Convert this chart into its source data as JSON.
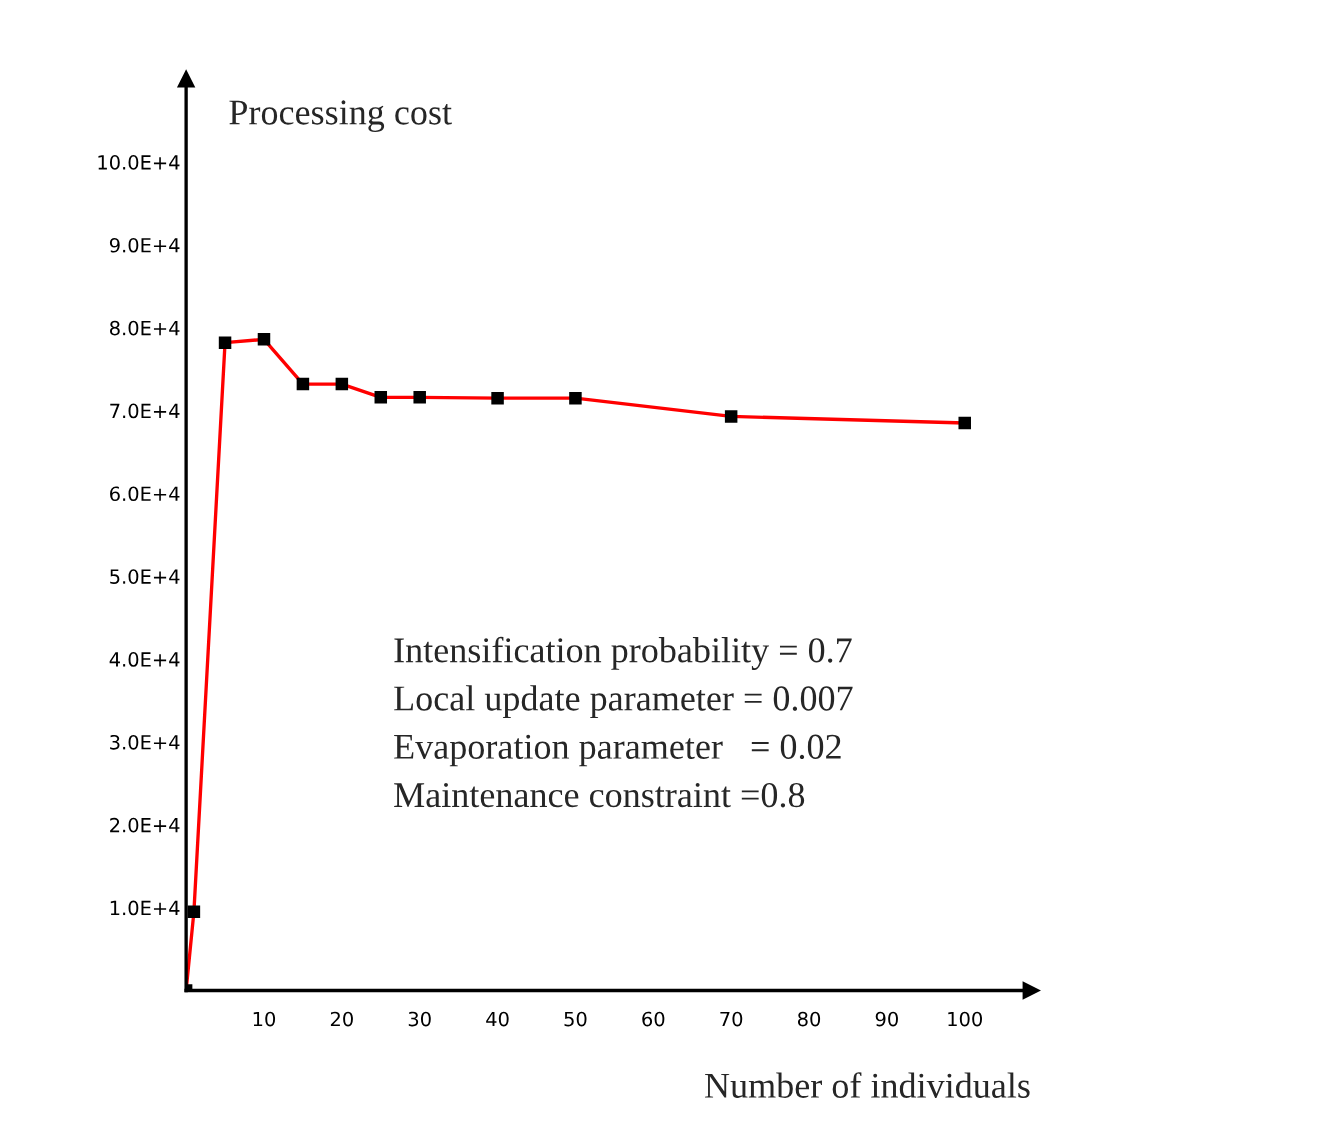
{
  "chart_data": {
    "type": "line",
    "ylabel": "Processing cost",
    "xlabel": "Number of individuals",
    "x": [
      0,
      1,
      5,
      10,
      15,
      20,
      25,
      30,
      40,
      50,
      70,
      100
    ],
    "series": [
      {
        "color": "#ff0000",
        "values": [
          0,
          9500,
          78200,
          78600,
          73200,
          73200,
          71600,
          71600,
          71500,
          71500,
          69300,
          68500
        ]
      }
    ],
    "xlim": [
      0,
      108.5
    ],
    "ylim": [
      0,
      110000
    ],
    "xticks": [
      10,
      20,
      30,
      40,
      50,
      60,
      70,
      80,
      90,
      100
    ],
    "yticks": [
      {
        "value": 10000,
        "label": "1.0E+4"
      },
      {
        "value": 20000,
        "label": "2.0E+4"
      },
      {
        "value": 30000,
        "label": "3.0E+4"
      },
      {
        "value": 40000,
        "label": "4.0E+4"
      },
      {
        "value": 50000,
        "label": "5.0E+4"
      },
      {
        "value": 60000,
        "label": "6.0E+4"
      },
      {
        "value": 70000,
        "label": "7.0E+4"
      },
      {
        "value": 80000,
        "label": "8.0E+4"
      },
      {
        "value": 90000,
        "label": "9.0E+4"
      },
      {
        "value": 100000,
        "label": "10.0E+4"
      }
    ],
    "annotations": [
      "Intensification probability = 0.7",
      "Local update parameter = 0.007",
      "Evaporation parameter   = 0.02",
      "Maintenance constraint =0.8"
    ],
    "marker": "square",
    "line_style": "solid",
    "grid": false
  }
}
